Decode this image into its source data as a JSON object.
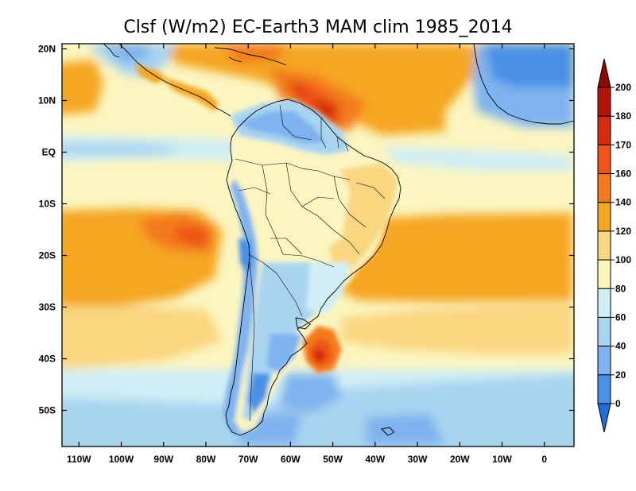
{
  "title": "Clsf (W/m2) EC-Earth3 MAM clim 1985_2014",
  "map": {
    "projection": "lat-lon",
    "lon_range": [
      -114,
      7
    ],
    "lat_range": [
      -57,
      21
    ],
    "lon_ticks": [
      {
        "value": -110,
        "label": "110W"
      },
      {
        "value": -100,
        "label": "100W"
      },
      {
        "value": -90,
        "label": "90W"
      },
      {
        "value": -80,
        "label": "80W"
      },
      {
        "value": -70,
        "label": "70W"
      },
      {
        "value": -60,
        "label": "60W"
      },
      {
        "value": -50,
        "label": "50W"
      },
      {
        "value": -40,
        "label": "40W"
      },
      {
        "value": -30,
        "label": "30W"
      },
      {
        "value": -20,
        "label": "20W"
      },
      {
        "value": -10,
        "label": "10W"
      },
      {
        "value": 0,
        "label": "0"
      }
    ],
    "lat_ticks": [
      {
        "value": 20,
        "label": "20N"
      },
      {
        "value": 10,
        "label": "10N"
      },
      {
        "value": 0,
        "label": "EQ"
      },
      {
        "value": -10,
        "label": "10S"
      },
      {
        "value": -20,
        "label": "20S"
      },
      {
        "value": -30,
        "label": "30S"
      },
      {
        "value": -40,
        "label": "40S"
      },
      {
        "value": -50,
        "label": "50S"
      }
    ]
  },
  "colorbar": {
    "levels": [
      "0",
      "20",
      "40",
      "60",
      "80",
      "100",
      "120",
      "140",
      "160",
      "170",
      "180",
      "200"
    ],
    "colors": [
      "#1f6fd6",
      "#4a90e6",
      "#7fb3ef",
      "#a8d4f0",
      "#cfeef5",
      "#fbf5c0",
      "#fad680",
      "#f5a623",
      "#f37a1c",
      "#ee5516",
      "#d42a0e",
      "#b01406",
      "#8a0a02"
    ],
    "under_color": "#1f6fd6",
    "over_color": "#8a0a02"
  }
}
